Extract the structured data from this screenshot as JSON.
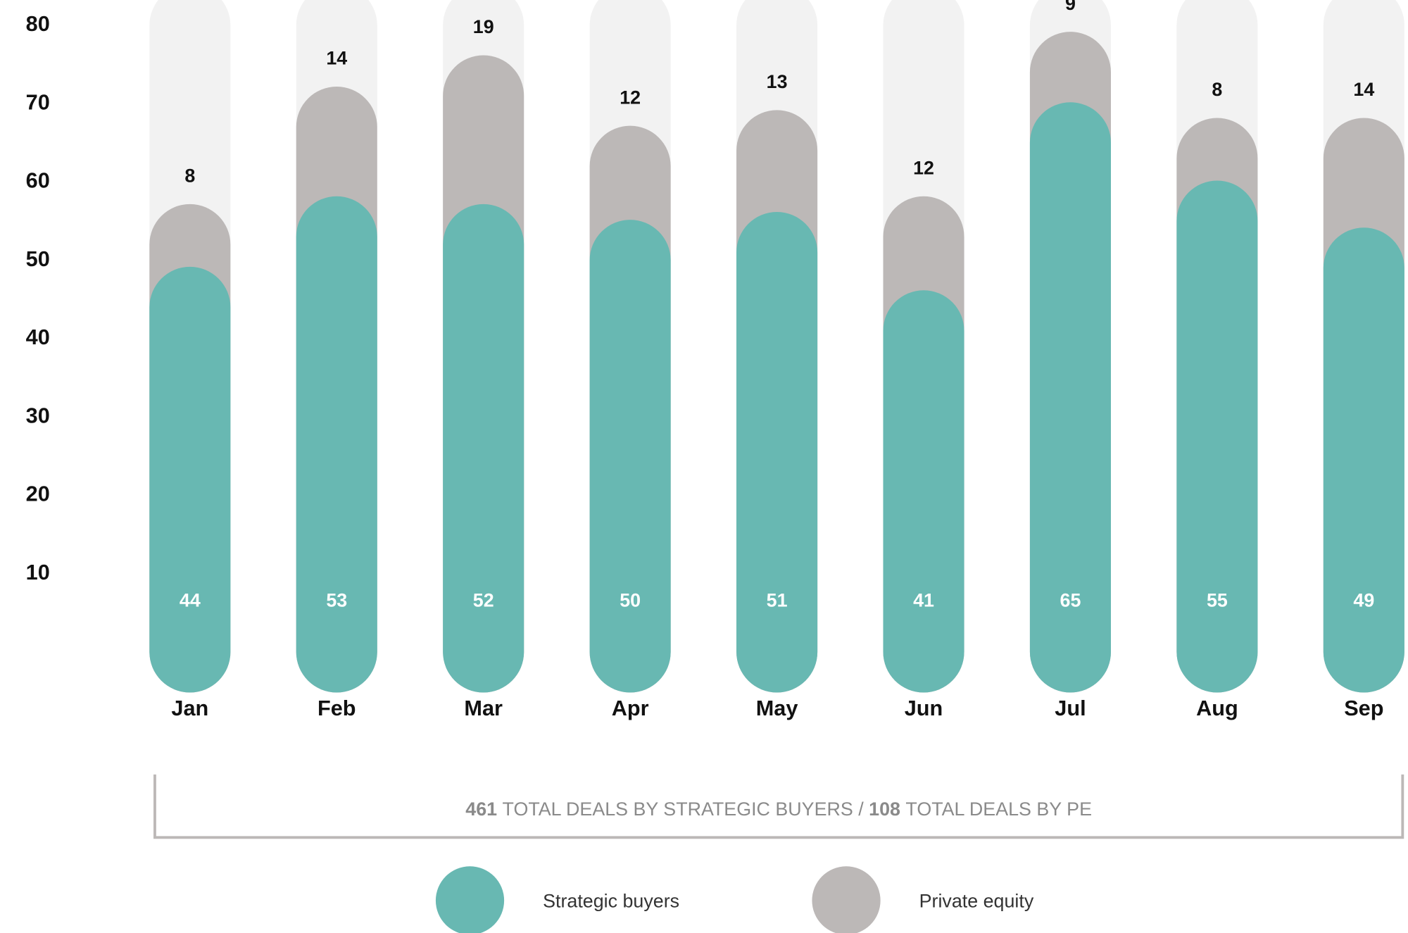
{
  "chart_data": {
    "type": "stacked_bar",
    "categories": [
      "Jan",
      "Feb",
      "Mar",
      "Apr",
      "May",
      "Jun",
      "Jul",
      "Aug",
      "Sep"
    ],
    "series": [
      {
        "name": "Strategic buyers",
        "color": "#68b8b2",
        "values": [
          44,
          53,
          52,
          50,
          51,
          41,
          65,
          55,
          49
        ]
      },
      {
        "name": "Private equity",
        "color": "#bcb8b7",
        "values": [
          8,
          14,
          19,
          12,
          13,
          12,
          9,
          8,
          14
        ]
      }
    ],
    "background_color": "#f2f2f2",
    "ylim": [
      0,
      80
    ],
    "yticks": [
      10,
      20,
      30,
      40,
      50,
      60,
      70,
      80
    ],
    "summary": {
      "strategic_total": "461",
      "strategic_text": "TOTAL DEALS BY STRATEGIC BUYERS /",
      "pe_total": "108",
      "pe_text": "TOTAL DEALS BY PE"
    },
    "legend": "bottom"
  }
}
